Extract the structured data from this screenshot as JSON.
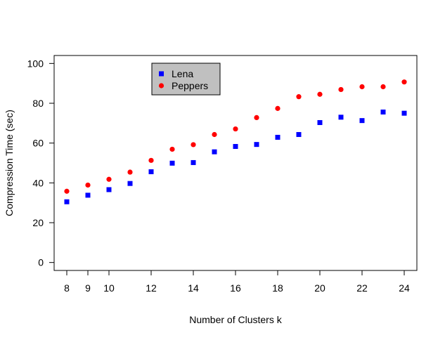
{
  "chart_data": {
    "type": "scatter",
    "xlabel": "Number of Clusters k",
    "ylabel": "Compression Time (sec)",
    "xlim": [
      7.4,
      24.6
    ],
    "ylim": [
      -4,
      104
    ],
    "x_ticks": [
      8,
      9,
      10,
      12,
      14,
      16,
      18,
      20,
      22,
      24
    ],
    "y_ticks": [
      0,
      20,
      40,
      60,
      80,
      100
    ],
    "grid": false,
    "legend_position": "top-left",
    "series": [
      {
        "name": "Lena",
        "marker": "square",
        "color": "#0000ff",
        "x": [
          8,
          9,
          10,
          11,
          12,
          13,
          14,
          15,
          16,
          17,
          18,
          19,
          20,
          21,
          22,
          23,
          24
        ],
        "y": [
          30.5,
          33.8,
          36.6,
          39.7,
          45.6,
          49.9,
          50.2,
          55.6,
          58.3,
          59.3,
          62.9,
          64.3,
          70.3,
          73.0,
          71.3,
          75.6,
          75.0
        ]
      },
      {
        "name": "Peppers",
        "marker": "circle",
        "color": "#ff0000",
        "x": [
          8,
          9,
          10,
          11,
          12,
          13,
          14,
          15,
          16,
          17,
          18,
          19,
          20,
          21,
          22,
          23,
          24
        ],
        "y": [
          35.8,
          38.9,
          41.8,
          45.4,
          51.3,
          56.9,
          59.2,
          64.3,
          67.1,
          72.8,
          77.4,
          83.3,
          84.5,
          86.9,
          88.3,
          88.3,
          90.7
        ]
      }
    ]
  }
}
